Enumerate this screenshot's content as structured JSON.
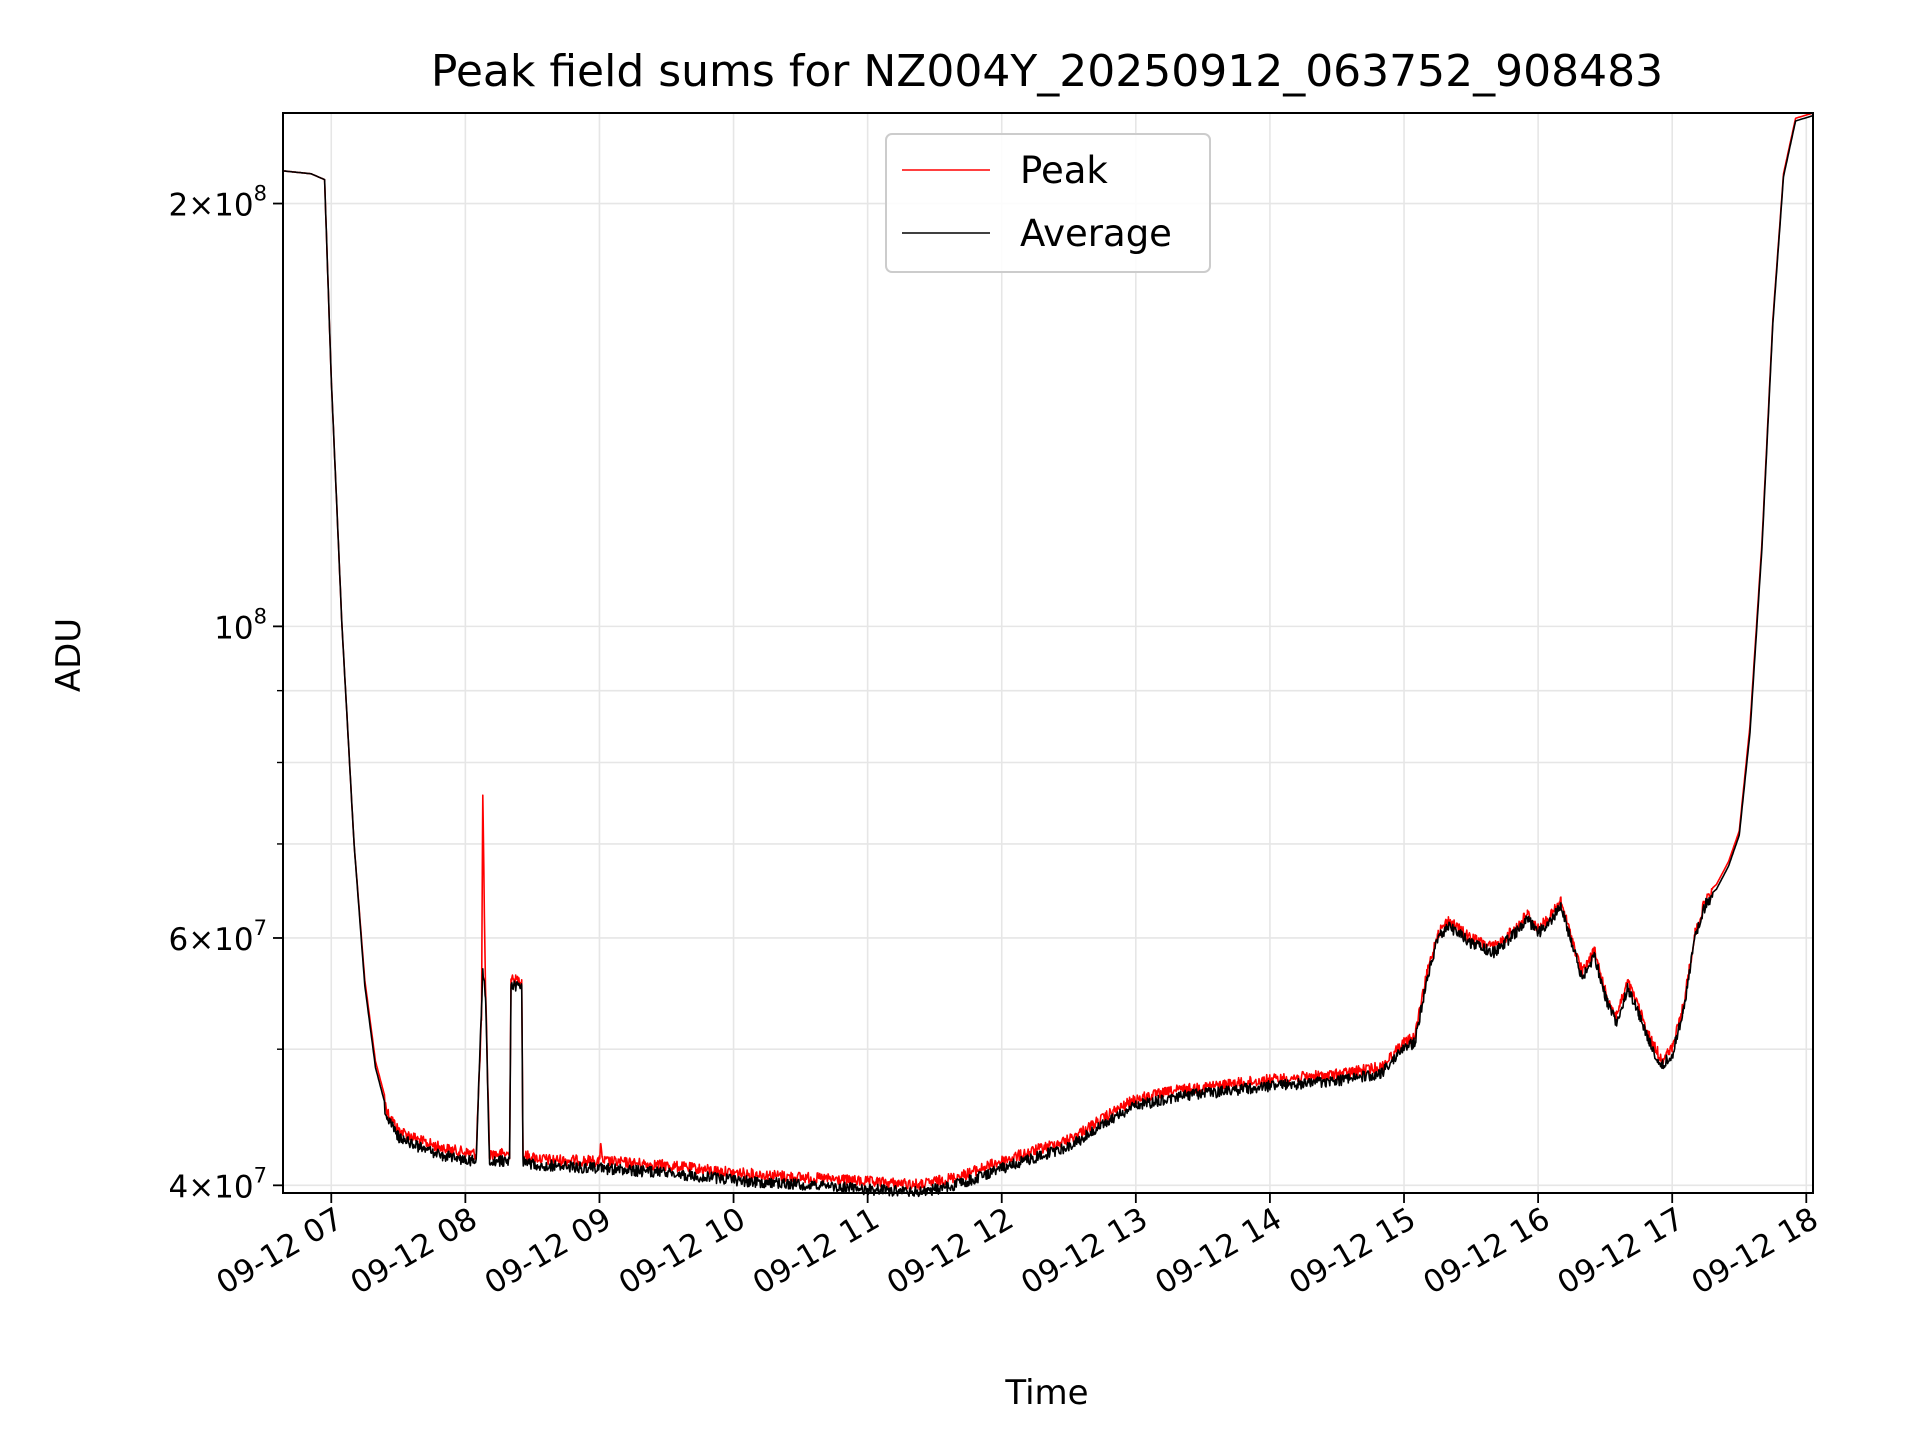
{
  "chart_data": {
    "type": "line",
    "title": "Peak field sums for NZ004Y_20250912_063752_908483",
    "xlabel": "Time",
    "ylabel": "ADU",
    "y_scale": "log",
    "x_unit": "hour of 2025-09-12",
    "xlim": [
      6.64,
      18.05
    ],
    "ylim": [
      39500000,
      232000000
    ],
    "grid": true,
    "legend_position": "upper center",
    "x_ticks": [
      {
        "value": 7,
        "label": "09-12 07"
      },
      {
        "value": 8,
        "label": "09-12 08"
      },
      {
        "value": 9,
        "label": "09-12 09"
      },
      {
        "value": 10,
        "label": "09-12 10"
      },
      {
        "value": 11,
        "label": "09-12 11"
      },
      {
        "value": 12,
        "label": "09-12 12"
      },
      {
        "value": 13,
        "label": "09-12 13"
      },
      {
        "value": 14,
        "label": "09-12 14"
      },
      {
        "value": 15,
        "label": "09-12 15"
      },
      {
        "value": 16,
        "label": "09-12 16"
      },
      {
        "value": 17,
        "label": "09-12 17"
      },
      {
        "value": 18,
        "label": "09-12 18"
      }
    ],
    "y_ticks": [
      {
        "value": 40000000,
        "mant": "4",
        "exp": "7"
      },
      {
        "value": 60000000,
        "mant": "6",
        "exp": "7"
      },
      {
        "value": 100000000,
        "mant": "",
        "exp": "8"
      },
      {
        "value": 200000000,
        "mant": "2",
        "exp": "8"
      }
    ],
    "y_minor_ticks": [
      50000000,
      70000000,
      80000000,
      90000000
    ],
    "series": [
      {
        "name": "Peak",
        "color": "#ff0000",
        "points": [
          [
            6.64,
            211000000
          ],
          [
            6.85,
            210000000
          ],
          [
            6.95,
            208000000
          ],
          [
            7.0,
            150000000
          ],
          [
            7.08,
            100000000
          ],
          [
            7.17,
            70000000
          ],
          [
            7.25,
            56000000
          ],
          [
            7.33,
            49000000
          ],
          [
            7.42,
            45500000
          ],
          [
            7.5,
            44200000
          ],
          [
            7.67,
            43400000
          ],
          [
            7.83,
            42900000
          ],
          [
            8.0,
            42600000
          ],
          [
            8.08,
            42500000
          ],
          [
            8.12,
            53000000
          ],
          [
            8.13,
            76000000
          ],
          [
            8.15,
            56000000
          ],
          [
            8.18,
            42500000
          ],
          [
            8.33,
            42500000
          ],
          [
            8.34,
            56500000
          ],
          [
            8.42,
            56500000
          ],
          [
            8.43,
            42400000
          ],
          [
            8.6,
            42100000
          ],
          [
            9.0,
            42000000
          ],
          [
            9.01,
            43500000
          ],
          [
            9.02,
            42000000
          ],
          [
            9.5,
            41700000
          ],
          [
            10.0,
            41200000
          ],
          [
            10.5,
            40900000
          ],
          [
            11.0,
            40600000
          ],
          [
            11.4,
            40400000
          ],
          [
            11.7,
            41000000
          ],
          [
            12.0,
            42000000
          ],
          [
            12.5,
            43500000
          ],
          [
            12.83,
            45500000
          ],
          [
            13.0,
            46500000
          ],
          [
            13.33,
            47200000
          ],
          [
            13.67,
            47600000
          ],
          [
            14.0,
            48000000
          ],
          [
            14.5,
            48400000
          ],
          [
            14.83,
            49000000
          ],
          [
            15.0,
            51000000
          ],
          [
            15.08,
            51500000
          ],
          [
            15.17,
            57000000
          ],
          [
            15.25,
            61000000
          ],
          [
            15.33,
            62300000
          ],
          [
            15.5,
            60500000
          ],
          [
            15.67,
            59600000
          ],
          [
            15.83,
            61500000
          ],
          [
            15.92,
            63000000
          ],
          [
            16.0,
            61500000
          ],
          [
            16.08,
            62500000
          ],
          [
            16.17,
            64300000
          ],
          [
            16.25,
            60500000
          ],
          [
            16.33,
            57200000
          ],
          [
            16.42,
            59300000
          ],
          [
            16.5,
            55500000
          ],
          [
            16.58,
            53200000
          ],
          [
            16.67,
            56300000
          ],
          [
            16.75,
            54000000
          ],
          [
            16.83,
            51500000
          ],
          [
            16.92,
            49600000
          ],
          [
            17.0,
            50500000
          ],
          [
            17.08,
            54000000
          ],
          [
            17.17,
            61000000
          ],
          [
            17.25,
            64500000
          ],
          [
            17.33,
            65500000
          ],
          [
            17.42,
            68000000
          ],
          [
            17.5,
            71500000
          ],
          [
            17.58,
            85000000
          ],
          [
            17.67,
            115000000
          ],
          [
            17.75,
            165000000
          ],
          [
            17.83,
            210000000
          ],
          [
            17.92,
            230000000
          ],
          [
            18.05,
            232000000
          ]
        ]
      },
      {
        "name": "Average",
        "color": "#000000",
        "points": [
          [
            6.64,
            211000000
          ],
          [
            6.85,
            210000000
          ],
          [
            6.95,
            208000000
          ],
          [
            7.0,
            150000000
          ],
          [
            7.08,
            100000000
          ],
          [
            7.17,
            70000000
          ],
          [
            7.25,
            55500000
          ],
          [
            7.33,
            48500000
          ],
          [
            7.42,
            45000000
          ],
          [
            7.5,
            43700000
          ],
          [
            7.67,
            42900000
          ],
          [
            7.83,
            42400000
          ],
          [
            8.0,
            42100000
          ],
          [
            8.08,
            42000000
          ],
          [
            8.12,
            54000000
          ],
          [
            8.13,
            57500000
          ],
          [
            8.15,
            55000000
          ],
          [
            8.18,
            42000000
          ],
          [
            8.33,
            42000000
          ],
          [
            8.34,
            56000000
          ],
          [
            8.42,
            56000000
          ],
          [
            8.43,
            41900000
          ],
          [
            8.6,
            41700000
          ],
          [
            9.0,
            41500000
          ],
          [
            9.5,
            41200000
          ],
          [
            10.0,
            40700000
          ],
          [
            10.5,
            40400000
          ],
          [
            11.0,
            40100000
          ],
          [
            11.4,
            39900000
          ],
          [
            11.7,
            40500000
          ],
          [
            12.0,
            41500000
          ],
          [
            12.5,
            43000000
          ],
          [
            12.83,
            45000000
          ],
          [
            13.0,
            46000000
          ],
          [
            13.33,
            46700000
          ],
          [
            13.67,
            47100000
          ],
          [
            14.0,
            47500000
          ],
          [
            14.5,
            47900000
          ],
          [
            14.83,
            48500000
          ],
          [
            15.0,
            50500000
          ],
          [
            15.08,
            51000000
          ],
          [
            15.17,
            56500000
          ],
          [
            15.25,
            60500000
          ],
          [
            15.33,
            61800000
          ],
          [
            15.5,
            60000000
          ],
          [
            15.67,
            59100000
          ],
          [
            15.83,
            61000000
          ],
          [
            15.92,
            62500000
          ],
          [
            16.0,
            61000000
          ],
          [
            16.08,
            62000000
          ],
          [
            16.17,
            63800000
          ],
          [
            16.25,
            60000000
          ],
          [
            16.33,
            56700000
          ],
          [
            16.42,
            58800000
          ],
          [
            16.5,
            55000000
          ],
          [
            16.58,
            52700000
          ],
          [
            16.67,
            55800000
          ],
          [
            16.75,
            53500000
          ],
          [
            16.83,
            51000000
          ],
          [
            16.92,
            49100000
          ],
          [
            17.0,
            50000000
          ],
          [
            17.08,
            53500000
          ],
          [
            17.17,
            60500000
          ],
          [
            17.25,
            64000000
          ],
          [
            17.33,
            65000000
          ],
          [
            17.42,
            67500000
          ],
          [
            17.5,
            71000000
          ],
          [
            17.58,
            84000000
          ],
          [
            17.67,
            114000000
          ],
          [
            17.75,
            164000000
          ],
          [
            17.83,
            209000000
          ],
          [
            17.92,
            229000000
          ],
          [
            18.05,
            231000000
          ]
        ]
      }
    ]
  }
}
